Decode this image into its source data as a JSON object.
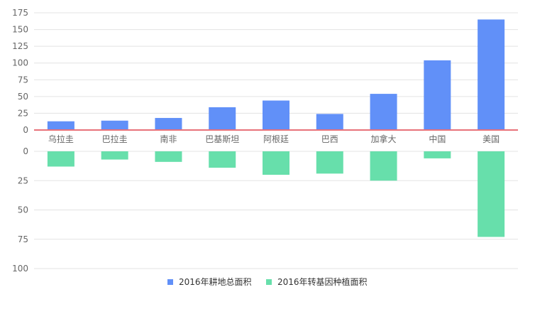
{
  "chart_data": {
    "type": "bar",
    "categories": [
      "乌拉圭",
      "巴拉圭",
      "南非",
      "巴基斯坦",
      "阿根廷",
      "巴西",
      "加拿大",
      "中国",
      "美国"
    ],
    "series": [
      {
        "name": "2016年耕地总面积",
        "color": "#6190f8",
        "values": [
          13,
          14,
          18,
          34,
          44,
          24,
          54,
          104,
          165
        ]
      },
      {
        "name": "2016年转基因种植面积",
        "color": "#67dfab",
        "values": [
          13,
          7,
          9,
          14,
          20,
          19,
          25,
          6,
          73
        ]
      }
    ],
    "top_axis": {
      "ylim": [
        0,
        175
      ],
      "ticks": [
        "0",
        "25",
        "50",
        "75",
        "100",
        "125",
        "150",
        "175"
      ]
    },
    "bottom_axis": {
      "ylim": [
        0,
        100
      ],
      "inverted": true,
      "ticks": [
        "0",
        "25",
        "50",
        "75",
        "100"
      ]
    },
    "zero_line_color": "#e8727a",
    "grid": true,
    "legend_position": "bottom"
  }
}
